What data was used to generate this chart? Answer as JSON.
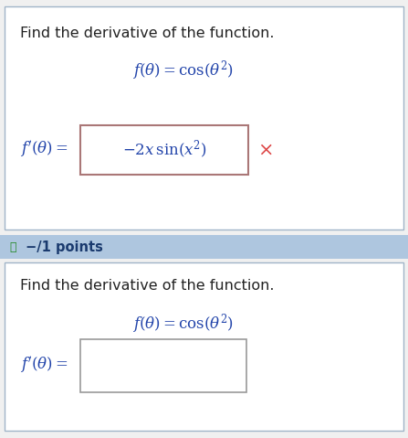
{
  "bg_color": "#f0f0f0",
  "panel1_bg": "#ffffff",
  "panel2_header_bg": "#aec6df",
  "panel2_body_bg": "#ffffff",
  "outer_border_color": "#a0b4c8",
  "text_color_dark": "#222222",
  "text_color_blue": "#2244aa",
  "text_color_green": "#228822",
  "answer_box_color": "#888888",
  "answer_box_color_p1": "#886666",
  "x_color": "#dd4444",
  "title_text": "Find the derivative of the function.",
  "points_label": "−/1 points",
  "fig_width": 4.47,
  "fig_height": 4.79,
  "dpi": 100
}
